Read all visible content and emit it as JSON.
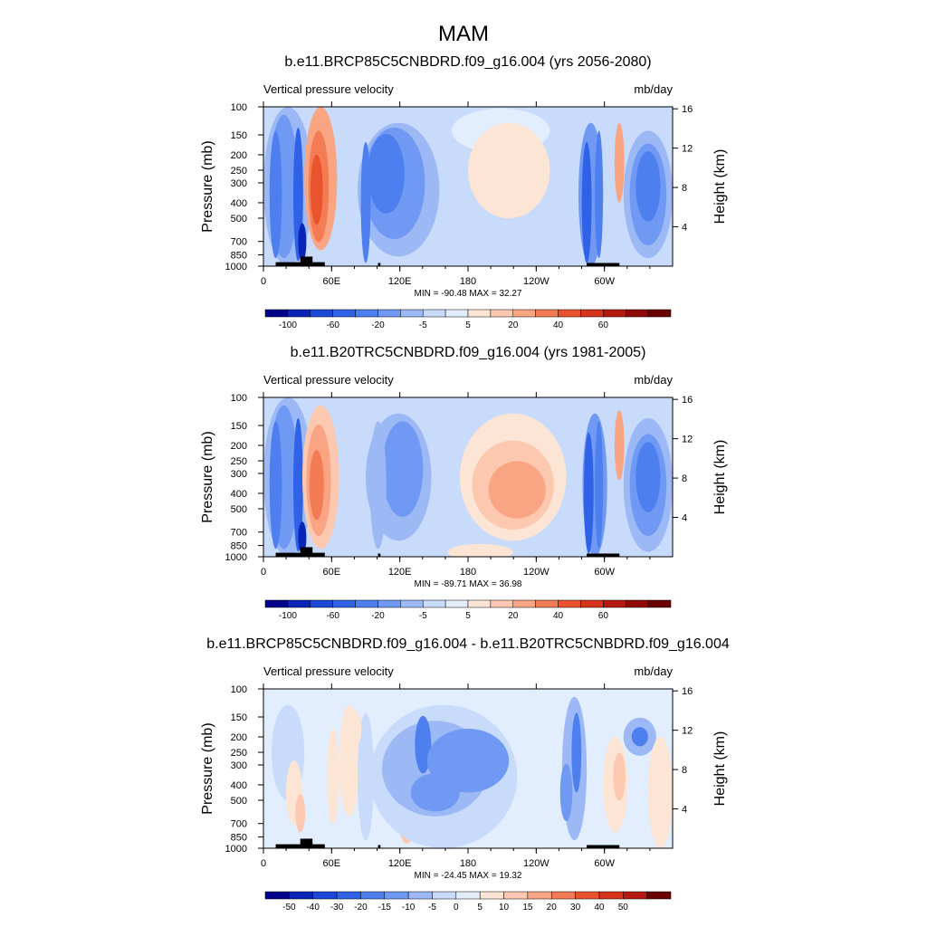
{
  "figure": {
    "title": "MAM"
  },
  "chart_data": [
    {
      "type": "heatmap",
      "title": "b.e11.BRCP85C5CNBDRD.f09_g16.004 (yrs 2056-2080)",
      "left_string": "Vertical pressure velocity",
      "right_string": "mb/day",
      "ylabel": "Pressure (mb)",
      "ylabel_right": "Height (km)",
      "x_ticks": [
        "0",
        "60E",
        "120E",
        "180",
        "120W",
        "60W"
      ],
      "y_ticks": [
        "100",
        "150",
        "200",
        "250",
        "300",
        "400",
        "500",
        "700",
        "850",
        "1000"
      ],
      "y_ticks_right": [
        "16",
        "12",
        "8",
        "4"
      ],
      "min_max": "MIN = -90.48  MAX =  32.27",
      "colorbar_labels": [
        "-100",
        "-60",
        "-20",
        "-5",
        "5",
        "20",
        "40",
        "60"
      ],
      "colorbar_colors": [
        "#00008b",
        "#0a24b8",
        "#1b48d6",
        "#2f62e6",
        "#4d7fef",
        "#7099f3",
        "#9cb9f6",
        "#c9dbfa",
        "#e2eefd",
        "#fde5d6",
        "#fcc9b0",
        "#f9a583",
        "#f37c55",
        "#e9542f",
        "#d6331a",
        "#b51a10",
        "#8f0a07",
        "#6b0000"
      ]
    },
    {
      "type": "heatmap",
      "title": "b.e11.B20TRC5CNBDRD.f09_g16.004 (yrs 1981-2005)",
      "left_string": "Vertical pressure velocity",
      "right_string": "mb/day",
      "ylabel": "Pressure (mb)",
      "ylabel_right": "Height (km)",
      "x_ticks": [
        "0",
        "60E",
        "120E",
        "180",
        "120W",
        "60W"
      ],
      "y_ticks": [
        "100",
        "150",
        "200",
        "250",
        "300",
        "400",
        "500",
        "700",
        "850",
        "1000"
      ],
      "y_ticks_right": [
        "16",
        "12",
        "8",
        "4"
      ],
      "min_max": "MIN = -89.71  MAX =  36.98",
      "colorbar_labels": [
        "-100",
        "-60",
        "-20",
        "-5",
        "5",
        "20",
        "40",
        "60"
      ],
      "colorbar_colors": [
        "#00008b",
        "#0a24b8",
        "#1b48d6",
        "#2f62e6",
        "#4d7fef",
        "#7099f3",
        "#9cb9f6",
        "#c9dbfa",
        "#e2eefd",
        "#fde5d6",
        "#fcc9b0",
        "#f9a583",
        "#f37c55",
        "#e9542f",
        "#d6331a",
        "#b51a10",
        "#8f0a07",
        "#6b0000"
      ]
    },
    {
      "type": "heatmap",
      "title": "b.e11.BRCP85C5CNBDRD.f09_g16.004 - b.e11.B20TRC5CNBDRD.f09_g16.004",
      "left_string": "Vertical pressure velocity",
      "right_string": "mb/day",
      "ylabel": "Pressure (mb)",
      "ylabel_right": "Height (km)",
      "x_ticks": [
        "0",
        "60E",
        "120E",
        "180",
        "120W",
        "60W"
      ],
      "y_ticks": [
        "100",
        "150",
        "200",
        "250",
        "300",
        "400",
        "500",
        "700",
        "850",
        "1000"
      ],
      "y_ticks_right": [
        "16",
        "12",
        "8",
        "4"
      ],
      "min_max": "MIN = -24.45  MAX =  19.32",
      "colorbar_labels": [
        "-50",
        "-40",
        "-30",
        "-20",
        "-15",
        "-10",
        "-5",
        "0",
        "5",
        "10",
        "15",
        "20",
        "30",
        "40",
        "50"
      ],
      "colorbar_colors": [
        "#00008b",
        "#0a24b8",
        "#1b48d6",
        "#2f62e6",
        "#4d7fef",
        "#7099f3",
        "#9cb9f6",
        "#c9dbfa",
        "#e2eefd",
        "#fde5d6",
        "#fcc9b0",
        "#f9a583",
        "#f37c55",
        "#e9542f",
        "#d6331a",
        "#b51a10",
        "#6b0000"
      ]
    }
  ]
}
